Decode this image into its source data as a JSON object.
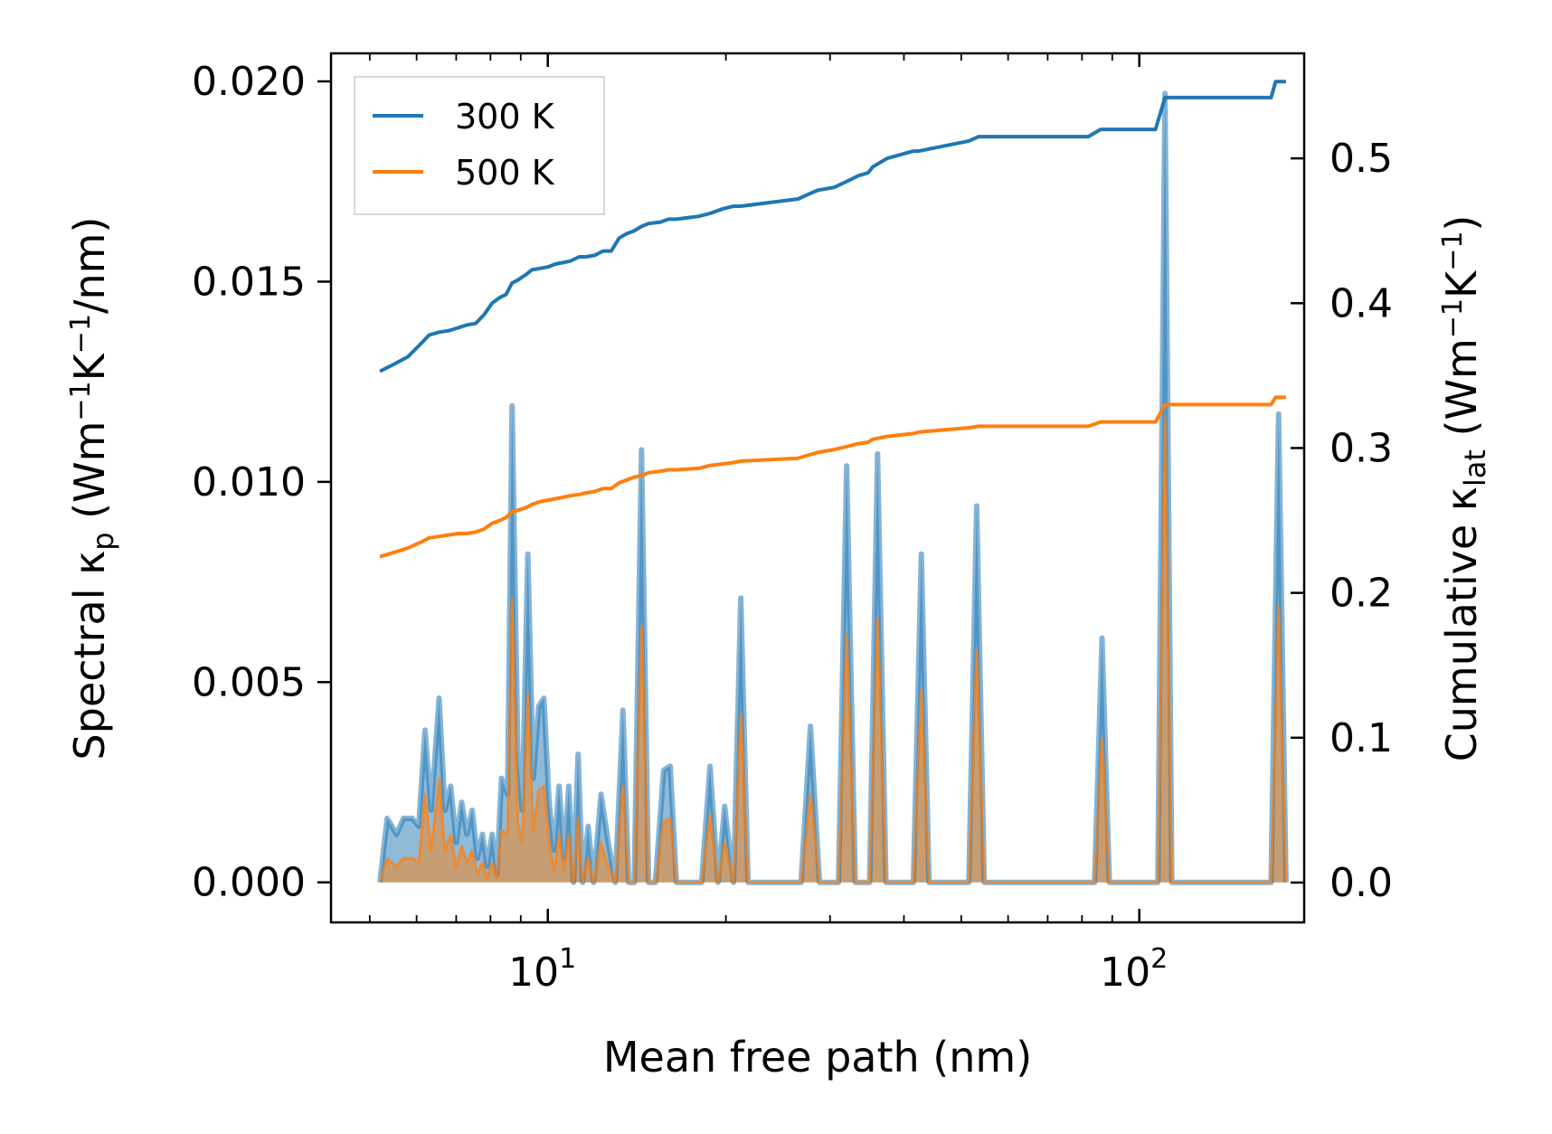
{
  "chart_data": {
    "type": "line",
    "title": "",
    "xlabel": "Mean free path (nm)",
    "ylabel_left": {
      "text": "Spectral κ",
      "sub": "p",
      "units_prefix": " (Wm",
      "sup1": "−1",
      "units_mid": "K",
      "sup2": "−1",
      "units_suffix": "/nm)"
    },
    "ylabel_right": {
      "text": "Cumulative κ",
      "sub": "lat",
      "units_prefix": " (Wm",
      "sup1": "−1",
      "units_mid": "K",
      "sup2": "−1",
      "units_suffix": ")"
    },
    "xscale": "log",
    "xlim": [
      4.3,
      190
    ],
    "ylim_left": [
      -0.001,
      0.0207
    ],
    "ylim_right": [
      -0.0275,
      0.5725
    ],
    "x_ticks": [
      {
        "base": "10",
        "exp": "1",
        "value": 10
      },
      {
        "base": "10",
        "exp": "2",
        "value": 100
      }
    ],
    "y_ticks_left": [
      {
        "label": "0.000",
        "value": 0.0
      },
      {
        "label": "0.005",
        "value": 0.005
      },
      {
        "label": "0.010",
        "value": 0.01
      },
      {
        "label": "0.015",
        "value": 0.015
      },
      {
        "label": "0.020",
        "value": 0.02
      }
    ],
    "y_ticks_right": [
      {
        "label": "0.0",
        "value": 0.0
      },
      {
        "label": "0.1",
        "value": 0.1
      },
      {
        "label": "0.2",
        "value": 0.2
      },
      {
        "label": "0.3",
        "value": 0.3
      },
      {
        "label": "0.4",
        "value": 0.4
      },
      {
        "label": "0.5",
        "value": 0.5
      }
    ],
    "legend": {
      "position": "top-left",
      "entries": [
        {
          "label": "300 K",
          "color": "#1f77b4"
        },
        {
          "label": "500 K",
          "color": "#ff7f0e"
        }
      ]
    },
    "spectral_axis": "left",
    "cumulative_axis": "right",
    "series": [
      {
        "name": "300 K",
        "color": "#1f77b4",
        "spectral": {
          "x": [
            5.2,
            5.35,
            5.55,
            5.7,
            5.9,
            6.05,
            6.2,
            6.35,
            6.55,
            6.7,
            6.85,
            7.0,
            7.15,
            7.3,
            7.45,
            7.6,
            7.75,
            7.9,
            8.05,
            8.2,
            8.35,
            8.55,
            8.7,
            8.9,
            9.05,
            9.25,
            9.45,
            9.65,
            9.85,
            10.05,
            10.25,
            10.45,
            10.65,
            10.85,
            11.05,
            11.25,
            11.45,
            11.7,
            11.95,
            12.3,
            12.65,
            13.0,
            13.4,
            13.7,
            14.0,
            14.4,
            14.8,
            15.2,
            15.7,
            16.1,
            16.5,
            17.0,
            18.2,
            18.8,
            19.4,
            19.9,
            20.6,
            21.2,
            21.8,
            26.8,
            27.8,
            28.8,
            31.0,
            32.0,
            33.1,
            35.0,
            36.1,
            37.3,
            41.5,
            42.8,
            44.1,
            51.5,
            53.1,
            54.7,
            84.0,
            86.5,
            89.0,
            107.5,
            110.5,
            113.5,
            167.0,
            172.0,
            177.0
          ],
          "y": [
            0.0,
            0.0016,
            0.0012,
            0.0016,
            0.0016,
            0.0014,
            0.0038,
            0.0018,
            0.0046,
            0.0018,
            0.0024,
            0.001,
            0.002,
            0.0012,
            0.0018,
            0.0006,
            0.0012,
            0.0004,
            0.0012,
            0.0002,
            0.0026,
            0.0022,
            0.0119,
            0.0032,
            0.0018,
            0.0082,
            0.0026,
            0.0044,
            0.0046,
            0.002,
            0.0008,
            0.0024,
            0.0006,
            0.0024,
            0.0,
            0.0032,
            0.0,
            0.0014,
            0.0,
            0.0022,
            0.001,
            0.0,
            0.0043,
            0.0,
            0.0,
            0.0108,
            0.0,
            0.0,
            0.0028,
            0.0029,
            0.0,
            0.0,
            0.0,
            0.0029,
            0.0,
            0.0019,
            0.0,
            0.0071,
            0.0,
            0.0,
            0.0039,
            0.0,
            0.0,
            0.0104,
            0.0,
            0.0,
            0.0107,
            0.0,
            0.0,
            0.0082,
            0.0,
            0.0,
            0.0094,
            0.0,
            0.0,
            0.0061,
            0.0,
            0.0,
            0.0197,
            0.0,
            0.0,
            0.0117,
            0.0
          ]
        },
        "cumulative": {
          "x": [
            5.2,
            5.5,
            5.8,
            6.1,
            6.3,
            6.55,
            6.8,
            7.05,
            7.3,
            7.55,
            7.8,
            8.05,
            8.3,
            8.5,
            8.7,
            8.9,
            9.2,
            9.4,
            9.7,
            10.0,
            10.3,
            10.6,
            10.9,
            11.3,
            11.6,
            12.0,
            12.4,
            12.8,
            13.2,
            13.6,
            14.0,
            14.4,
            14.8,
            15.5,
            16.0,
            16.5,
            18.0,
            18.8,
            19.7,
            20.6,
            21.2,
            26.5,
            27.5,
            28.6,
            30.5,
            32.0,
            33.5,
            34.8,
            35.4,
            36.4,
            37.5,
            41.5,
            42.4,
            51.5,
            53.5,
            82.0,
            86.0,
            106.5,
            110.5,
            113.0,
            167.0,
            170.0,
            177.0
          ],
          "y": [
            0.353,
            0.358,
            0.363,
            0.372,
            0.378,
            0.38,
            0.381,
            0.383,
            0.385,
            0.386,
            0.392,
            0.4,
            0.404,
            0.406,
            0.414,
            0.416,
            0.42,
            0.423,
            0.424,
            0.425,
            0.427,
            0.428,
            0.429,
            0.432,
            0.432,
            0.433,
            0.436,
            0.436,
            0.445,
            0.448,
            0.45,
            0.453,
            0.455,
            0.456,
            0.458,
            0.458,
            0.46,
            0.462,
            0.465,
            0.467,
            0.467,
            0.472,
            0.475,
            0.478,
            0.48,
            0.484,
            0.488,
            0.49,
            0.494,
            0.497,
            0.5,
            0.505,
            0.505,
            0.512,
            0.515,
            0.515,
            0.52,
            0.52,
            0.542,
            0.542,
            0.542,
            0.553,
            0.553
          ]
        }
      },
      {
        "name": "500 K",
        "color": "#ff7f0e",
        "spectral": {
          "x": [
            5.2,
            5.35,
            5.55,
            5.7,
            5.9,
            6.05,
            6.2,
            6.35,
            6.55,
            6.7,
            6.85,
            7.0,
            7.15,
            7.3,
            7.45,
            7.6,
            7.75,
            7.9,
            8.05,
            8.2,
            8.35,
            8.55,
            8.7,
            8.9,
            9.05,
            9.25,
            9.45,
            9.65,
            9.85,
            10.05,
            10.25,
            10.45,
            10.65,
            10.85,
            11.05,
            11.25,
            11.45,
            11.7,
            11.95,
            12.3,
            12.65,
            13.0,
            13.4,
            13.7,
            14.0,
            14.4,
            14.8,
            15.2,
            15.7,
            16.1,
            16.5,
            17.0,
            18.2,
            18.8,
            19.4,
            19.9,
            20.6,
            21.2,
            21.8,
            26.8,
            27.8,
            28.8,
            31.0,
            32.0,
            33.1,
            35.0,
            36.1,
            37.3,
            41.5,
            42.8,
            44.1,
            51.5,
            53.1,
            54.7,
            84.0,
            86.5,
            89.0,
            107.5,
            110.5,
            113.5,
            167.0,
            172.0,
            177.0
          ],
          "y": [
            0.0,
            0.0006,
            0.0004,
            0.0006,
            0.0006,
            0.0005,
            0.0022,
            0.0008,
            0.0026,
            0.0008,
            0.0012,
            0.0004,
            0.0009,
            0.0005,
            0.0008,
            0.0002,
            0.0005,
            0.0001,
            0.0005,
            0.0001,
            0.0013,
            0.0012,
            0.0071,
            0.0015,
            0.001,
            0.0047,
            0.0013,
            0.0023,
            0.0024,
            0.001,
            0.0003,
            0.0012,
            0.0003,
            0.0012,
            0.0,
            0.0016,
            0.0,
            0.0006,
            0.0,
            0.001,
            0.0004,
            0.0,
            0.0024,
            0.0,
            0.0,
            0.0064,
            0.0,
            0.0,
            0.0015,
            0.0016,
            0.0,
            0.0,
            0.0,
            0.0017,
            0.0,
            0.001,
            0.0,
            0.0042,
            0.0,
            0.0,
            0.0022,
            0.0,
            0.0,
            0.0062,
            0.0,
            0.0,
            0.0066,
            0.0,
            0.0,
            0.0048,
            0.0,
            0.0,
            0.0058,
            0.0,
            0.0,
            0.0036,
            0.0,
            0.0,
            0.0116,
            0.0,
            0.0,
            0.0069,
            0.0
          ]
        },
        "cumulative": {
          "x": [
            5.2,
            5.5,
            5.8,
            6.1,
            6.3,
            6.55,
            6.8,
            7.05,
            7.3,
            7.55,
            7.8,
            8.05,
            8.3,
            8.5,
            8.7,
            8.9,
            9.2,
            9.4,
            9.7,
            10.0,
            10.3,
            10.6,
            10.9,
            11.3,
            11.6,
            12.0,
            12.4,
            12.8,
            13.2,
            13.6,
            14.0,
            14.4,
            14.8,
            15.5,
            16.0,
            16.5,
            18.0,
            18.8,
            19.7,
            20.6,
            21.2,
            26.5,
            27.5,
            28.6,
            30.5,
            32.0,
            33.5,
            34.8,
            35.4,
            36.4,
            37.5,
            41.5,
            42.4,
            51.5,
            53.5,
            82.0,
            86.0,
            106.5,
            110.5,
            113.0,
            167.0,
            170.0,
            177.0
          ],
          "y": [
            0.225,
            0.228,
            0.231,
            0.235,
            0.238,
            0.239,
            0.24,
            0.241,
            0.241,
            0.242,
            0.244,
            0.248,
            0.25,
            0.252,
            0.256,
            0.257,
            0.259,
            0.261,
            0.263,
            0.264,
            0.265,
            0.266,
            0.267,
            0.268,
            0.269,
            0.27,
            0.272,
            0.272,
            0.276,
            0.278,
            0.28,
            0.281,
            0.283,
            0.284,
            0.285,
            0.285,
            0.286,
            0.288,
            0.289,
            0.29,
            0.291,
            0.293,
            0.295,
            0.297,
            0.299,
            0.301,
            0.303,
            0.304,
            0.306,
            0.307,
            0.308,
            0.31,
            0.311,
            0.314,
            0.315,
            0.315,
            0.318,
            0.318,
            0.33,
            0.33,
            0.33,
            0.335,
            0.335
          ]
        }
      }
    ]
  }
}
